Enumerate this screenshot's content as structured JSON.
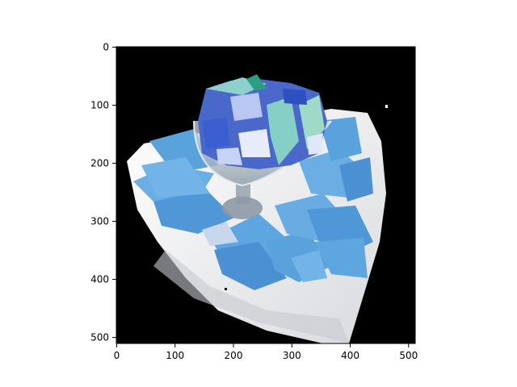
{
  "figure": {
    "image_content": "photo of a glass cup of ceviche with blue-tinted tortilla chips on a white triangular plate, black background (color-channel swapped)",
    "x_ticks": [
      "0",
      "100",
      "200",
      "300",
      "400",
      "500"
    ],
    "y_ticks": [
      "0",
      "100",
      "200",
      "300",
      "400",
      "500"
    ],
    "x_range": [
      0,
      512
    ],
    "y_range": [
      0,
      512
    ],
    "colors": {
      "background": "#000000",
      "plate": "#f2f2f4",
      "chips": "#5aa2dc",
      "chips_dark": "#3f7fc4",
      "glass": "#c9d6e0",
      "ceviche_light": "#9fd3cf",
      "ceviche_blue": "#3b5fd1"
    }
  }
}
